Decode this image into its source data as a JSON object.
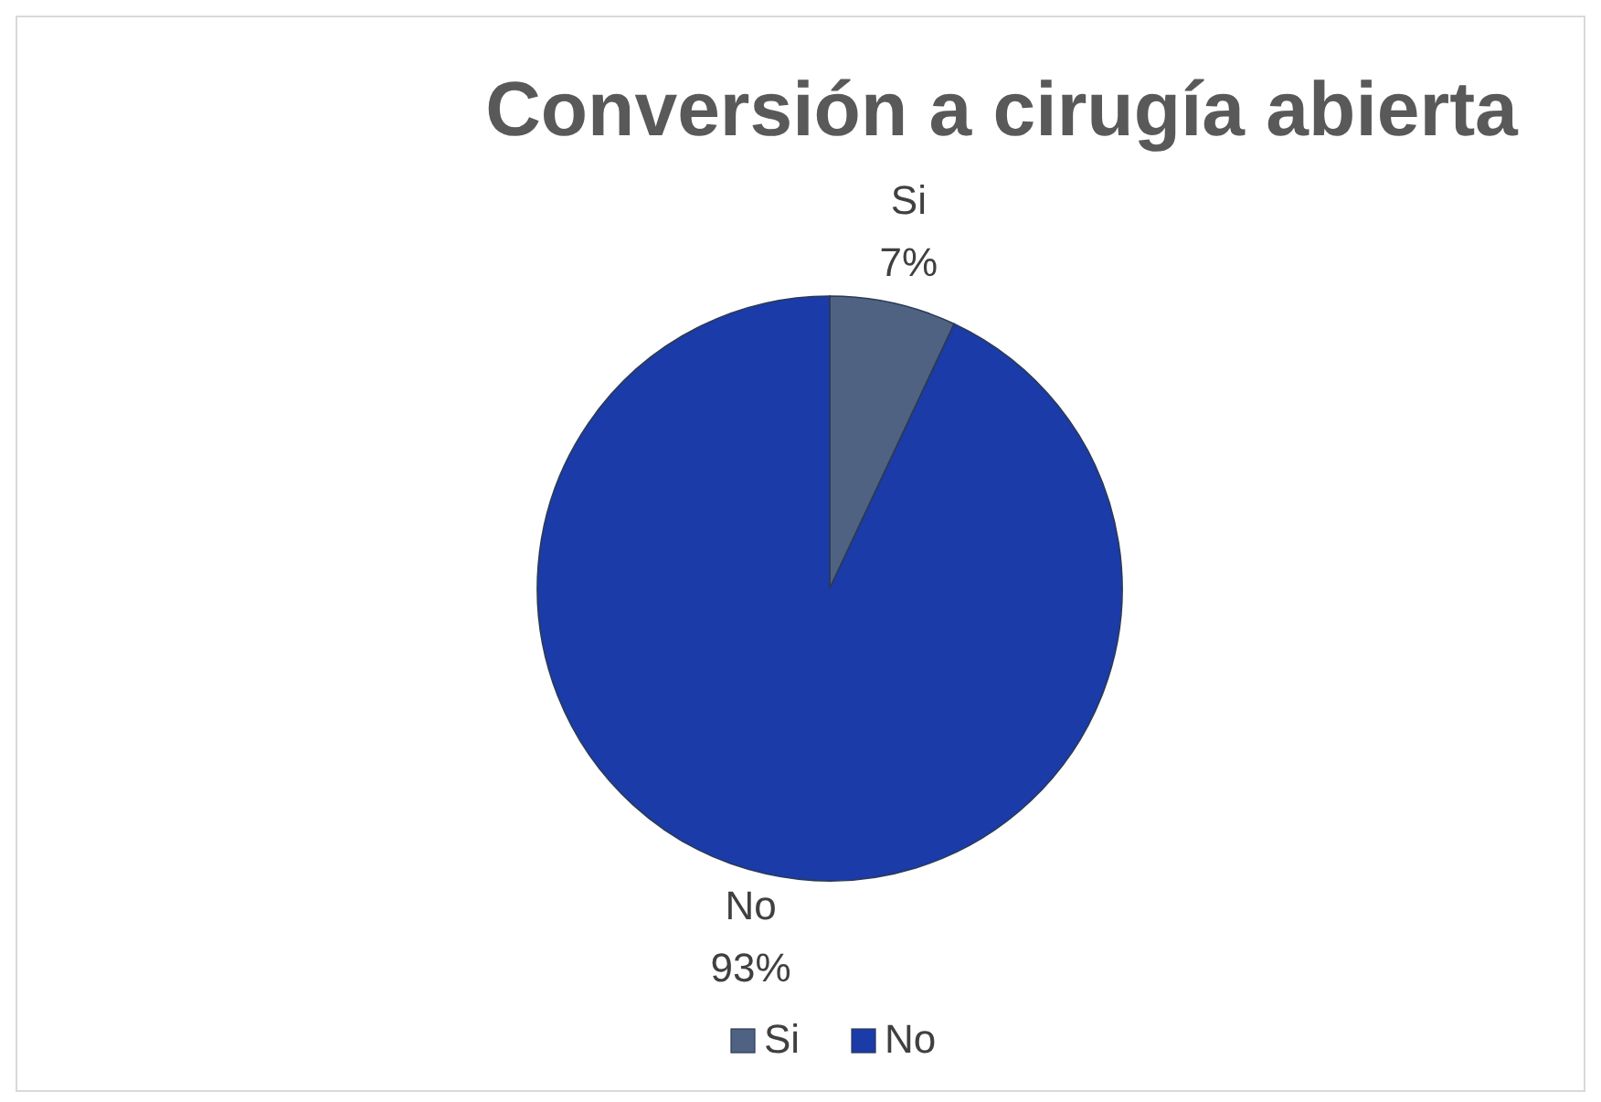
{
  "chart_data": {
    "type": "pie",
    "title": "Conversión a cirugía abierta",
    "categories": [
      "Si",
      "No"
    ],
    "values": [
      7,
      93
    ],
    "colors": [
      "#4f6282",
      "#1a3ba8"
    ],
    "value_labels": [
      "7%",
      "93%"
    ],
    "legend": "bottom"
  }
}
